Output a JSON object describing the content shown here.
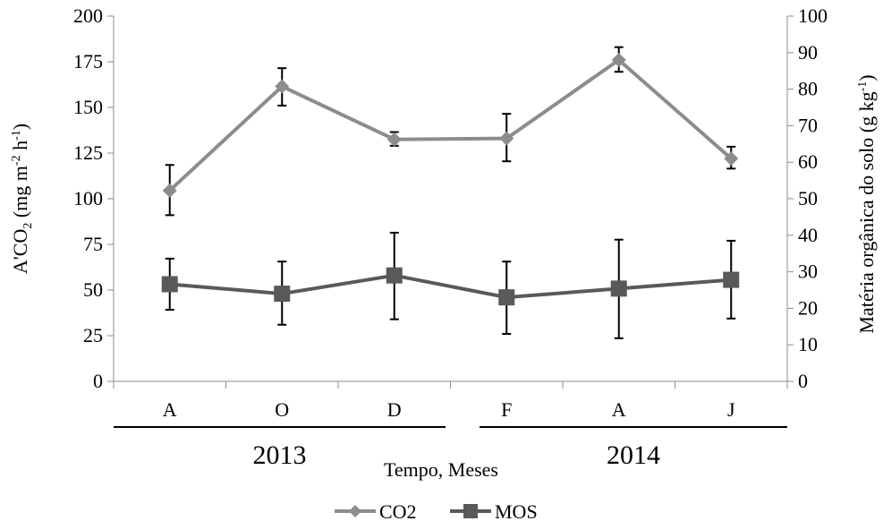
{
  "chart_data": {
    "type": "line",
    "categories": [
      "A",
      "O",
      "D",
      "F",
      "A",
      "J"
    ],
    "groups": [
      {
        "label": "2013",
        "categories": [
          "A",
          "O",
          "D"
        ]
      },
      {
        "label": "2014",
        "categories": [
          "F",
          "A",
          "J"
        ]
      }
    ],
    "xlabel": "Tempo, Meses",
    "ylabel_left": {
      "main": "A'CO",
      "sub": "2",
      "mid": " (mg m",
      "sup1": "-2",
      "mid2": " h",
      "sup2": "-1",
      "end": ")"
    },
    "ylabel_right": {
      "main": "Matéria orgânica do solo (g kg",
      "sup": "-1",
      "end": ")"
    },
    "y_left": {
      "lim": [
        0,
        200
      ],
      "ticks": [
        "0",
        "25",
        "50",
        "75",
        "100",
        "125",
        "150",
        "175",
        "200"
      ]
    },
    "y_right": {
      "lim": [
        0,
        100
      ],
      "ticks": [
        "0",
        "10",
        "20",
        "30",
        "40",
        "50",
        "60",
        "70",
        "80",
        "90",
        "100"
      ]
    },
    "series": [
      {
        "name": "CO2",
        "axis": "left",
        "marker": "diamond",
        "color": "#8c8c8c",
        "values": [
          104.5,
          161.5,
          132.5,
          133.0,
          176.0,
          122.0
        ],
        "error_low": [
          91.0,
          151.0,
          129.0,
          120.5,
          169.5,
          116.5
        ],
        "error_high": [
          118.5,
          171.5,
          136.5,
          146.5,
          183.0,
          128.5
        ]
      },
      {
        "name": "MOS",
        "axis": "right",
        "marker": "square",
        "color": "#595959",
        "values": [
          26.6,
          24.0,
          29.0,
          23.0,
          25.4,
          27.8
        ],
        "error_low": [
          19.6,
          15.5,
          17.0,
          13.0,
          11.8,
          17.2
        ],
        "error_high": [
          33.6,
          32.8,
          40.7,
          32.8,
          38.8,
          38.5
        ]
      }
    ],
    "legend": {
      "position": "bottom",
      "entries": [
        "CO2",
        "MOS"
      ]
    },
    "grid": false
  }
}
